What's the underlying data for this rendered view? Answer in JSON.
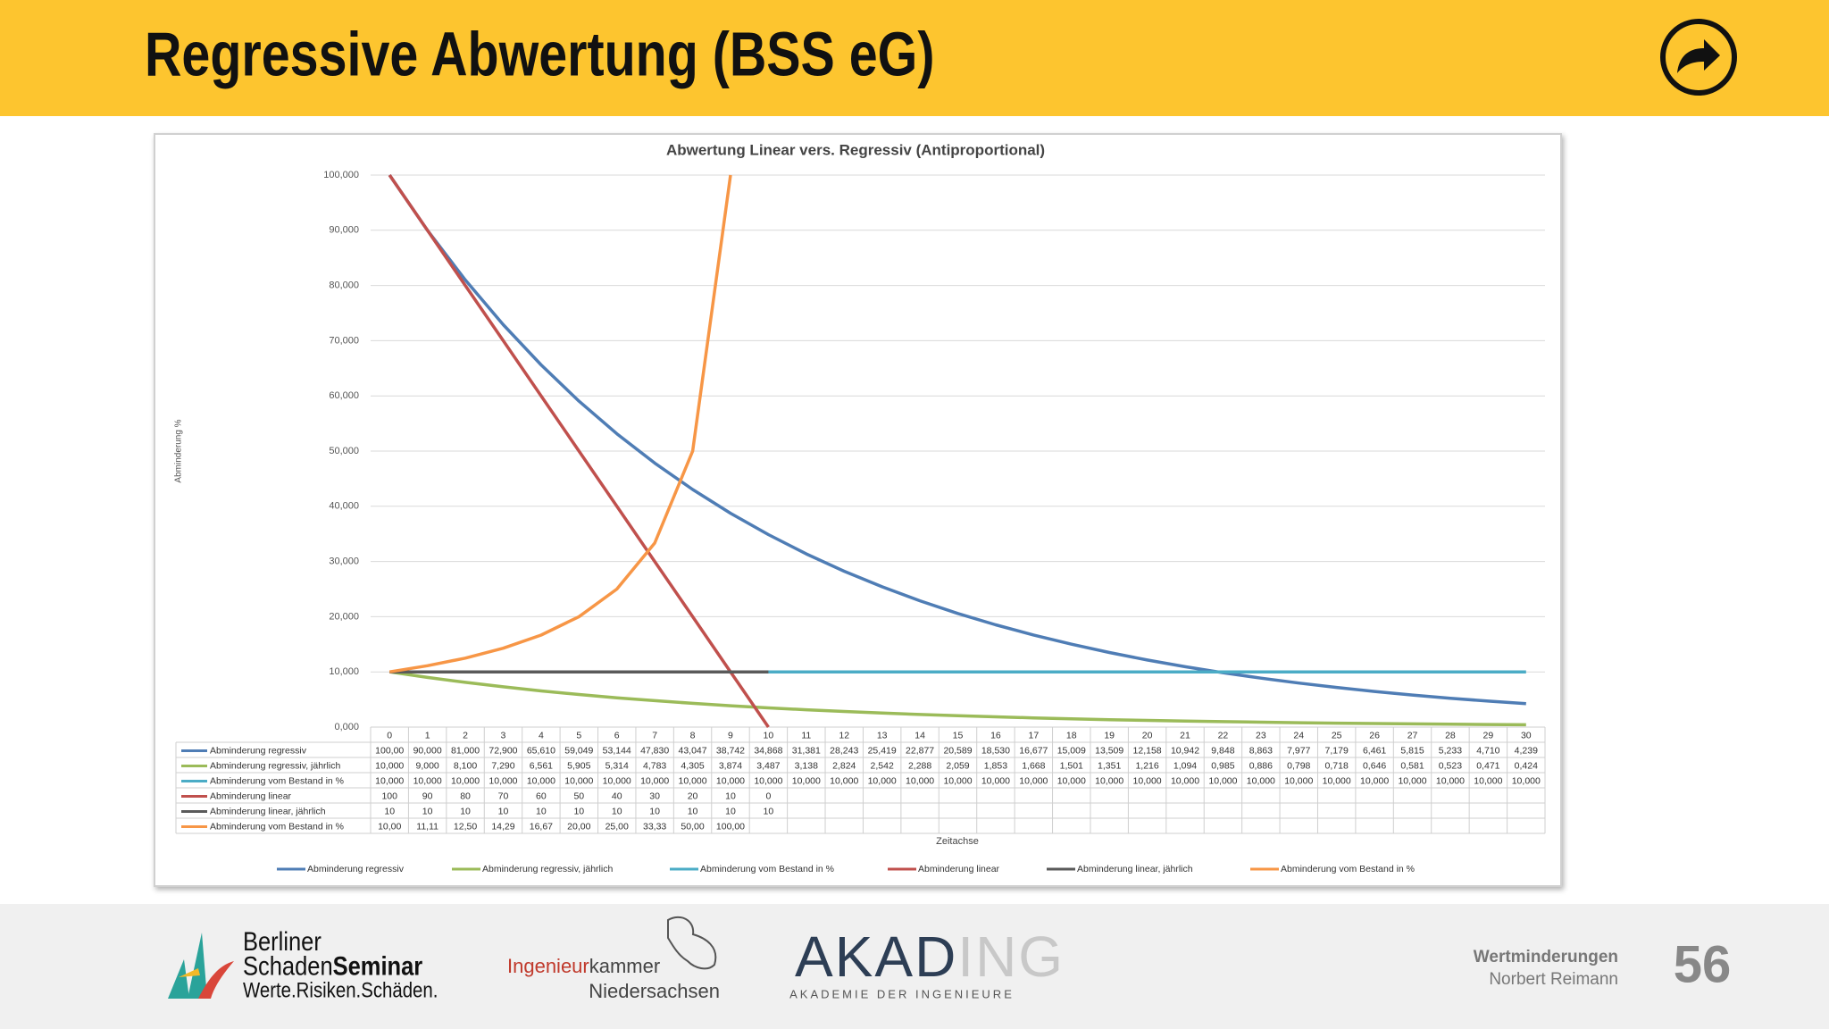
{
  "header": {
    "title": "Regressive Abwertung (BSS eG)"
  },
  "chart_data": {
    "type": "line",
    "title": "Abwertung Linear vers. Regressiv (Antiproportional)",
    "y_label": "Abminderung %",
    "x_label": "Zeitachse",
    "categories": [
      "0",
      "1",
      "2",
      "3",
      "4",
      "5",
      "6",
      "7",
      "8",
      "9",
      "10",
      "11",
      "12",
      "13",
      "14",
      "15",
      "16",
      "17",
      "18",
      "19",
      "20",
      "21",
      "22",
      "23",
      "24",
      "25",
      "26",
      "27",
      "28",
      "29",
      "30"
    ],
    "ylim": [
      0,
      100
    ],
    "yticks": [
      {
        "value": 0,
        "label": "0,000"
      },
      {
        "value": 10,
        "label": "10,000"
      },
      {
        "value": 20,
        "label": "20,000"
      },
      {
        "value": 30,
        "label": "30,000"
      },
      {
        "value": 40,
        "label": "40,000"
      },
      {
        "value": 50,
        "label": "50,000"
      },
      {
        "value": 60,
        "label": "60,000"
      },
      {
        "value": 70,
        "label": "70,000"
      },
      {
        "value": 80,
        "label": "80,000"
      },
      {
        "value": 90,
        "label": "90,000"
      },
      {
        "value": 100,
        "label": "100,000"
      }
    ],
    "grid": true,
    "legend": "bottom",
    "series": [
      {
        "name": "Abminderung regressiv",
        "color": "#4f7db5",
        "values": [
          100,
          90,
          81,
          72.9,
          65.61,
          59.049,
          53.144,
          47.83,
          43.047,
          38.742,
          34.868,
          31.381,
          28.243,
          25.419,
          22.877,
          20.589,
          18.53,
          16.677,
          15.009,
          13.509,
          12.158,
          10.942,
          9.848,
          8.863,
          7.977,
          7.179,
          6.461,
          5.815,
          5.233,
          4.71,
          4.239
        ],
        "value_labels": [
          "100,00",
          "90,000",
          "81,000",
          "72,900",
          "65,610",
          "59,049",
          "53,144",
          "47,830",
          "43,047",
          "38,742",
          "34,868",
          "31,381",
          "28,243",
          "25,419",
          "22,877",
          "20,589",
          "18,530",
          "16,677",
          "15,009",
          "13,509",
          "12,158",
          "10,942",
          "9,848",
          "8,863",
          "7,977",
          "7,179",
          "6,461",
          "5,815",
          "5,233",
          "4,710",
          "4,239"
        ]
      },
      {
        "name": "Abminderung regressiv, jährlich",
        "color": "#9bbb59",
        "values": [
          10,
          9,
          8.1,
          7.29,
          6.561,
          5.905,
          5.314,
          4.783,
          4.305,
          3.874,
          3.487,
          3.138,
          2.824,
          2.542,
          2.288,
          2.059,
          1.853,
          1.668,
          1.501,
          1.351,
          1.216,
          1.094,
          0.985,
          0.886,
          0.798,
          0.718,
          0.646,
          0.581,
          0.523,
          0.471,
          0.424
        ],
        "value_labels": [
          "10,000",
          "9,000",
          "8,100",
          "7,290",
          "6,561",
          "5,905",
          "5,314",
          "4,783",
          "4,305",
          "3,874",
          "3,487",
          "3,138",
          "2,824",
          "2,542",
          "2,288",
          "2,059",
          "1,853",
          "1,668",
          "1,501",
          "1,351",
          "1,216",
          "1,094",
          "0,985",
          "0,886",
          "0,798",
          "0,718",
          "0,646",
          "0,581",
          "0,523",
          "0,471",
          "0,424"
        ]
      },
      {
        "name": "Abminderung vom Bestand in %",
        "color": "#4bacc6",
        "values": [
          10,
          10,
          10,
          10,
          10,
          10,
          10,
          10,
          10,
          10,
          10,
          10,
          10,
          10,
          10,
          10,
          10,
          10,
          10,
          10,
          10,
          10,
          10,
          10,
          10,
          10,
          10,
          10,
          10,
          10,
          10
        ],
        "value_labels": [
          "10,000",
          "10,000",
          "10,000",
          "10,000",
          "10,000",
          "10,000",
          "10,000",
          "10,000",
          "10,000",
          "10,000",
          "10,000",
          "10,000",
          "10,000",
          "10,000",
          "10,000",
          "10,000",
          "10,000",
          "10,000",
          "10,000",
          "10,000",
          "10,000",
          "10,000",
          "10,000",
          "10,000",
          "10,000",
          "10,000",
          "10,000",
          "10,000",
          "10,000",
          "10,000",
          "10,000"
        ]
      },
      {
        "name": "Abminderung linear",
        "color": "#c0504d",
        "values": [
          100,
          90,
          80,
          70,
          60,
          50,
          40,
          30,
          20,
          10,
          0,
          null,
          null,
          null,
          null,
          null,
          null,
          null,
          null,
          null,
          null,
          null,
          null,
          null,
          null,
          null,
          null,
          null,
          null,
          null,
          null
        ]
      },
      {
        "name": "Abminderung linear, jährlich",
        "color": "#5a5a5a",
        "values": [
          10,
          10,
          10,
          10,
          10,
          10,
          10,
          10,
          10,
          10,
          10,
          null,
          null,
          null,
          null,
          null,
          null,
          null,
          null,
          null,
          null,
          null,
          null,
          null,
          null,
          null,
          null,
          null,
          null,
          null,
          null
        ]
      },
      {
        "name": "Abminderung vom Bestand in %",
        "color": "#f79646",
        "values": [
          10,
          11.11,
          12.5,
          14.29,
          16.67,
          20,
          25,
          33.33,
          50,
          100,
          null,
          null,
          null,
          null,
          null,
          null,
          null,
          null,
          null,
          null,
          null,
          null,
          null,
          null,
          null,
          null,
          null,
          null,
          null,
          null,
          null
        ],
        "value_labels": [
          "10,00",
          "11,11",
          "12,50",
          "14,29",
          "16,67",
          "20,00",
          "25,00",
          "33,33",
          "50,00",
          "100,00",
          null,
          null,
          null,
          null,
          null,
          null,
          null,
          null,
          null,
          null,
          null,
          null,
          null,
          null,
          null,
          null,
          null,
          null,
          null,
          null,
          null
        ]
      }
    ]
  },
  "footer": {
    "logo1": {
      "line1": "Berliner",
      "line2a": "Schaden",
      "line2b": "Seminar",
      "line3": "Werte.Risiken.Schäden."
    },
    "logo2": {
      "line1a": "Ingenieur",
      "line1b": "kammer",
      "line2": "Niedersachsen"
    },
    "logo3": {
      "name_a": "AKAD",
      "name_b": "ING",
      "tagline": "AKADEMIE DER INGENIEURE"
    },
    "author": {
      "topic": "Wertminderungen",
      "name": "Norbert Reimann"
    },
    "page": "56"
  }
}
